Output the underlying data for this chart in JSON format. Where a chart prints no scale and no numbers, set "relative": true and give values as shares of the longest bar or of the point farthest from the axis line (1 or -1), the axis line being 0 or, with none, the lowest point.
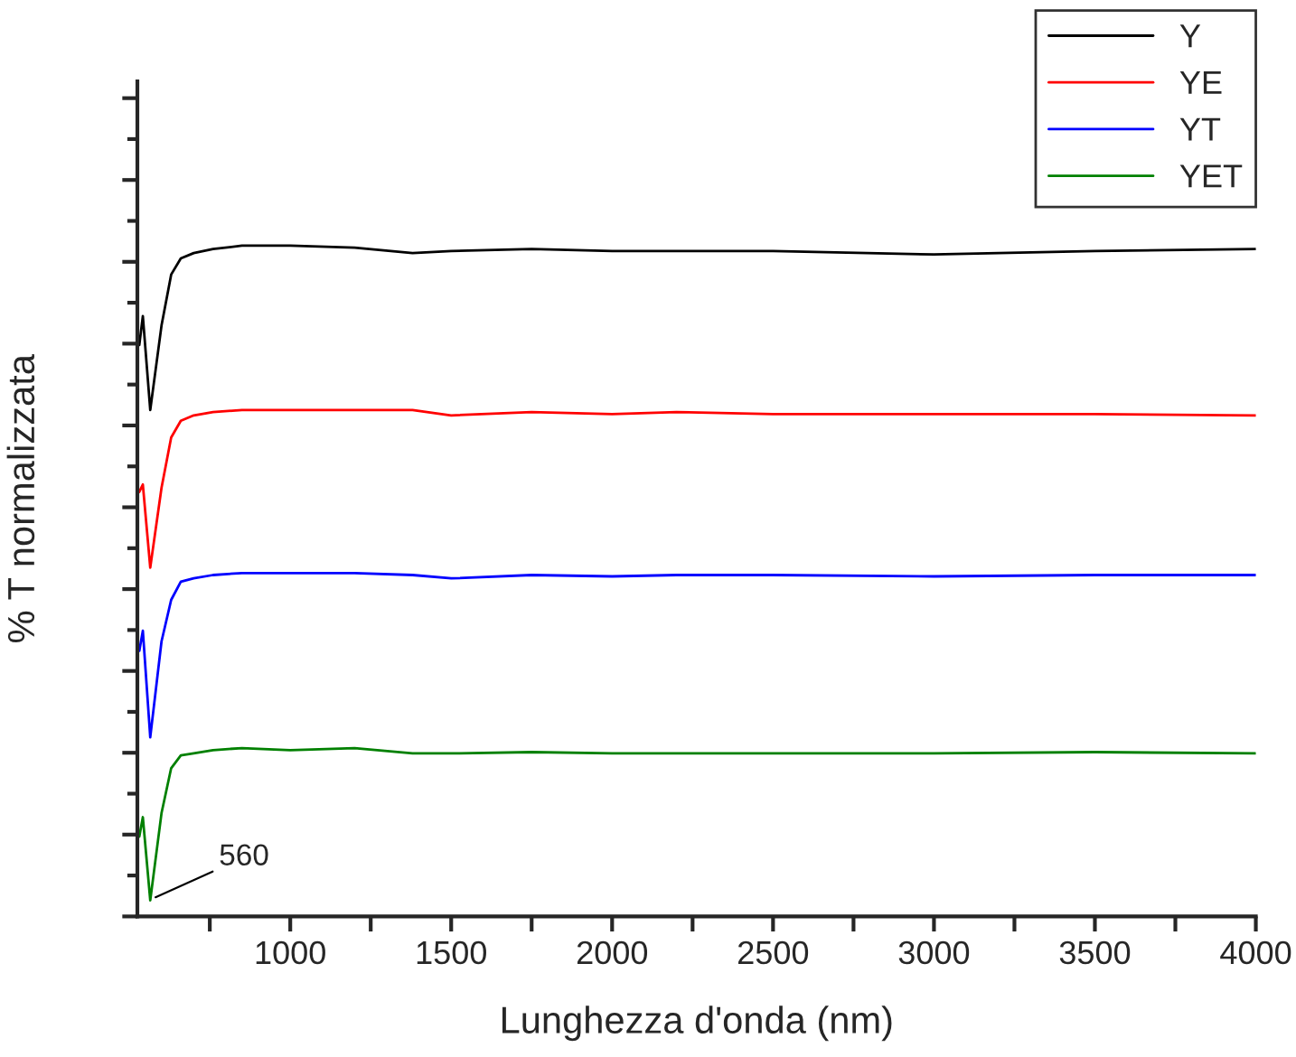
{
  "chart_data": {
    "type": "line",
    "relative": true,
    "xlabel": "Lunghezza d'onda (nm)",
    "ylabel": "% T normalizzata",
    "x": [
      531,
      542,
      565,
      600,
      630,
      660,
      700,
      760,
      850,
      1000,
      1200,
      1380,
      1500,
      1750,
      2000,
      2200,
      2500,
      3000,
      3500,
      4000
    ],
    "series": [
      {
        "name": "Y",
        "color": "#000000",
        "values": [
          0.852,
          0.895,
          0.755,
          0.881,
          0.957,
          0.981,
          0.989,
          0.995,
          1.0,
          1.0,
          0.997,
          0.989,
          0.992,
          0.995,
          0.992,
          0.992,
          0.992,
          0.987,
          0.992,
          0.995
        ]
      },
      {
        "name": "YE",
        "color": "#ff0000",
        "values": [
          0.633,
          0.644,
          0.52,
          0.639,
          0.714,
          0.739,
          0.747,
          0.752,
          0.755,
          0.755,
          0.755,
          0.755,
          0.747,
          0.752,
          0.749,
          0.752,
          0.749,
          0.749,
          0.749,
          0.747
        ]
      },
      {
        "name": "YT",
        "color": "#0000ff",
        "values": [
          0.396,
          0.426,
          0.267,
          0.41,
          0.472,
          0.499,
          0.504,
          0.509,
          0.512,
          0.512,
          0.512,
          0.509,
          0.504,
          0.509,
          0.507,
          0.509,
          0.509,
          0.507,
          0.509,
          0.509
        ]
      },
      {
        "name": "YET",
        "color": "#008000",
        "values": [
          0.119,
          0.148,
          0.024,
          0.154,
          0.221,
          0.24,
          0.243,
          0.248,
          0.251,
          0.248,
          0.251,
          0.243,
          0.243,
          0.245,
          0.243,
          0.243,
          0.243,
          0.243,
          0.245,
          0.243
        ]
      }
    ],
    "xlim": [
      525,
      4000
    ],
    "xticks": [
      {
        "value": 750,
        "label": null
      },
      1000,
      {
        "value": 1250,
        "label": null
      },
      1500,
      {
        "value": 1750,
        "label": null
      },
      2000,
      {
        "value": 2250,
        "label": null
      },
      2500,
      {
        "value": 2750,
        "label": null
      },
      3000,
      {
        "value": 3250,
        "label": null
      },
      3500,
      {
        "value": 3750,
        "label": null
      },
      4000
    ],
    "tick_labels": "x",
    "annotations": [
      {
        "text": "560",
        "x": 560,
        "y": 0.024
      }
    ],
    "legend": "top right",
    "grid": false,
    "marker": "none",
    "line_style": "solid"
  }
}
